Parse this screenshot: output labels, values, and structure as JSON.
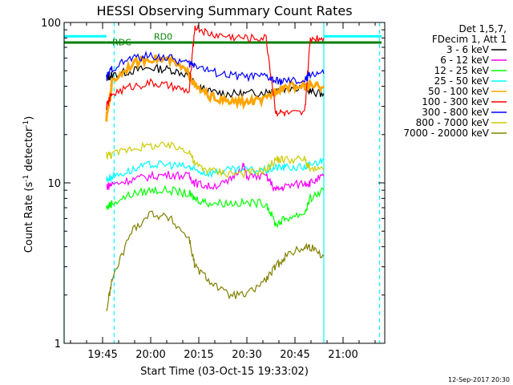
{
  "chart_data": {
    "type": "line",
    "title": "HESSI Observing Summary Count Rates",
    "xlabel": "Start Time (03-Oct-15 19:33:02)",
    "ylabel_parts": [
      "Count Rate (s",
      "-1",
      " detector",
      "-1",
      ")"
    ],
    "yscale": "log",
    "ylim": [
      1,
      100
    ],
    "xlim": [
      "19:33",
      "21:13"
    ],
    "x_ticks": [
      "19:45",
      "20:00",
      "20:15",
      "20:30",
      "20:45",
      "21:00"
    ],
    "y_ticks": [
      "1",
      "10",
      "100"
    ],
    "legend_header": [
      "Det 1,5,7,",
      "FDecim 1, Att 1"
    ],
    "legend_position": "right",
    "footer": "12-Sep-2017 20:30",
    "annotations": [
      {
        "text": "RD0",
        "time": "20:01",
        "value": 78
      },
      {
        "text": "RDC",
        "time": "19:48",
        "value": 72
      }
    ],
    "series": [
      {
        "name": "3 - 6 keV",
        "color": "#000000",
        "values": [
          [
            19.77,
            45
          ],
          [
            19.8,
            47
          ],
          [
            19.9,
            50
          ],
          [
            20.0,
            52
          ],
          [
            20.1,
            51
          ],
          [
            20.2,
            47
          ],
          [
            20.23,
            41
          ],
          [
            20.3,
            37
          ],
          [
            20.4,
            36
          ],
          [
            20.5,
            36
          ],
          [
            20.6,
            37
          ],
          [
            20.65,
            38
          ],
          [
            20.7,
            39
          ],
          [
            20.8,
            40
          ],
          [
            20.83,
            37
          ],
          [
            20.9,
            36
          ]
        ]
      },
      {
        "name": "6 - 12 keV",
        "color": "#ff00ff",
        "values": [
          [
            19.77,
            9.5
          ],
          [
            19.8,
            9.8
          ],
          [
            19.9,
            10.5
          ],
          [
            20.0,
            11
          ],
          [
            20.1,
            11.3
          ],
          [
            20.2,
            11
          ],
          [
            20.23,
            10
          ],
          [
            20.3,
            9.5
          ],
          [
            20.4,
            10
          ],
          [
            20.48,
            13
          ],
          [
            20.5,
            11
          ],
          [
            20.6,
            11
          ],
          [
            20.65,
            9
          ],
          [
            20.7,
            9.5
          ],
          [
            20.8,
            10
          ],
          [
            20.83,
            10
          ],
          [
            20.9,
            11
          ]
        ]
      },
      {
        "name": "12 - 25 keV",
        "color": "#00ff00",
        "values": [
          [
            19.77,
            7
          ],
          [
            19.8,
            7.5
          ],
          [
            19.9,
            8.5
          ],
          [
            20.0,
            9
          ],
          [
            20.1,
            9
          ],
          [
            20.2,
            8.5
          ],
          [
            20.23,
            8
          ],
          [
            20.3,
            7.5
          ],
          [
            20.4,
            7.5
          ],
          [
            20.5,
            7.5
          ],
          [
            20.6,
            7.5
          ],
          [
            20.65,
            5.5
          ],
          [
            20.7,
            6
          ],
          [
            20.8,
            6.5
          ],
          [
            20.83,
            8
          ],
          [
            20.9,
            9
          ]
        ]
      },
      {
        "name": "25 - 50 keV",
        "color": "#00ffff",
        "values": [
          [
            19.77,
            10.5
          ],
          [
            19.8,
            11
          ],
          [
            19.9,
            12
          ],
          [
            20.0,
            13
          ],
          [
            20.1,
            13
          ],
          [
            20.2,
            12.5
          ],
          [
            20.23,
            12
          ],
          [
            20.3,
            11.5
          ],
          [
            20.4,
            12
          ],
          [
            20.5,
            12
          ],
          [
            20.6,
            12
          ],
          [
            20.65,
            12.5
          ],
          [
            20.7,
            12.5
          ],
          [
            20.8,
            12.5
          ],
          [
            20.83,
            13
          ],
          [
            20.9,
            14
          ]
        ]
      },
      {
        "name": "50 - 100 keV",
        "color": "#ffa500",
        "values": [
          [
            19.77,
            25
          ],
          [
            19.8,
            43
          ],
          [
            19.9,
            55
          ],
          [
            20.0,
            60
          ],
          [
            20.1,
            58
          ],
          [
            20.2,
            48
          ],
          [
            20.23,
            40
          ],
          [
            20.3,
            35
          ],
          [
            20.4,
            32
          ],
          [
            20.5,
            32
          ],
          [
            20.6,
            33
          ],
          [
            20.65,
            38
          ],
          [
            20.7,
            40
          ],
          [
            20.8,
            40
          ],
          [
            20.83,
            40
          ],
          [
            20.9,
            40
          ]
        ]
      },
      {
        "name": "100 - 300 keV",
        "color": "#ff0000",
        "values": [
          [
            19.77,
            30
          ],
          [
            19.8,
            36
          ],
          [
            19.9,
            40
          ],
          [
            20.0,
            42
          ],
          [
            20.1,
            40
          ],
          [
            20.2,
            37
          ],
          [
            20.23,
            95
          ],
          [
            20.3,
            85
          ],
          [
            20.4,
            82
          ],
          [
            20.5,
            80
          ],
          [
            20.6,
            80
          ],
          [
            20.65,
            28
          ],
          [
            20.7,
            27
          ],
          [
            20.8,
            27
          ],
          [
            20.83,
            80
          ],
          [
            20.9,
            80
          ]
        ]
      },
      {
        "name": "300 - 800 keV",
        "color": "#0000ff",
        "values": [
          [
            19.77,
            45
          ],
          [
            19.8,
            52
          ],
          [
            19.9,
            60
          ],
          [
            20.0,
            62
          ],
          [
            20.1,
            60
          ],
          [
            20.2,
            55
          ],
          [
            20.23,
            55
          ],
          [
            20.3,
            50
          ],
          [
            20.4,
            47
          ],
          [
            20.5,
            46
          ],
          [
            20.6,
            46
          ],
          [
            20.65,
            43
          ],
          [
            20.7,
            43
          ],
          [
            20.8,
            43
          ],
          [
            20.83,
            48
          ],
          [
            20.9,
            48
          ]
        ]
      },
      {
        "name": "800 - 7000 keV",
        "color": "#cccc00",
        "values": [
          [
            19.77,
            15
          ],
          [
            19.8,
            15
          ],
          [
            19.9,
            16.5
          ],
          [
            20.0,
            17
          ],
          [
            20.1,
            17
          ],
          [
            20.2,
            16
          ],
          [
            20.23,
            13
          ],
          [
            20.3,
            12
          ],
          [
            20.4,
            11.5
          ],
          [
            20.5,
            11.5
          ],
          [
            20.6,
            12
          ],
          [
            20.65,
            14
          ],
          [
            20.7,
            14
          ],
          [
            20.8,
            14
          ],
          [
            20.83,
            12
          ],
          [
            20.9,
            12
          ]
        ]
      },
      {
        "name": "7000 - 20000 keV",
        "color": "#808000",
        "values": [
          [
            19.77,
            1.6
          ],
          [
            19.8,
            2.5
          ],
          [
            19.9,
            5
          ],
          [
            20.0,
            6.5
          ],
          [
            20.1,
            6
          ],
          [
            20.2,
            4.5
          ],
          [
            20.23,
            3
          ],
          [
            20.3,
            2.5
          ],
          [
            20.4,
            2
          ],
          [
            20.5,
            2
          ],
          [
            20.6,
            2.5
          ],
          [
            20.65,
            3
          ],
          [
            20.7,
            3.5
          ],
          [
            20.8,
            4
          ],
          [
            20.83,
            4
          ],
          [
            20.9,
            3.5
          ]
        ]
      }
    ],
    "flag_lines": [
      {
        "color": "#00ffff",
        "value": 82,
        "segments": [
          [
            19.55,
            19.77
          ],
          [
            20.9,
            21.2
          ]
        ]
      },
      {
        "color": "#008000",
        "value": 75,
        "segments": [
          [
            19.55,
            19.77
          ],
          [
            19.77,
            20.9
          ],
          [
            20.9,
            21.2
          ]
        ]
      }
    ],
    "vertical_markers": [
      {
        "color": "#00ffff",
        "style": "solid",
        "time": 19.55
      },
      {
        "color": "#00ffff",
        "style": "solid",
        "time": 20.9
      },
      {
        "color": "#00ffff",
        "style": "dashed",
        "time": 19.81
      },
      {
        "color": "#00ffff",
        "style": "dashed",
        "time": 21.19
      }
    ]
  }
}
